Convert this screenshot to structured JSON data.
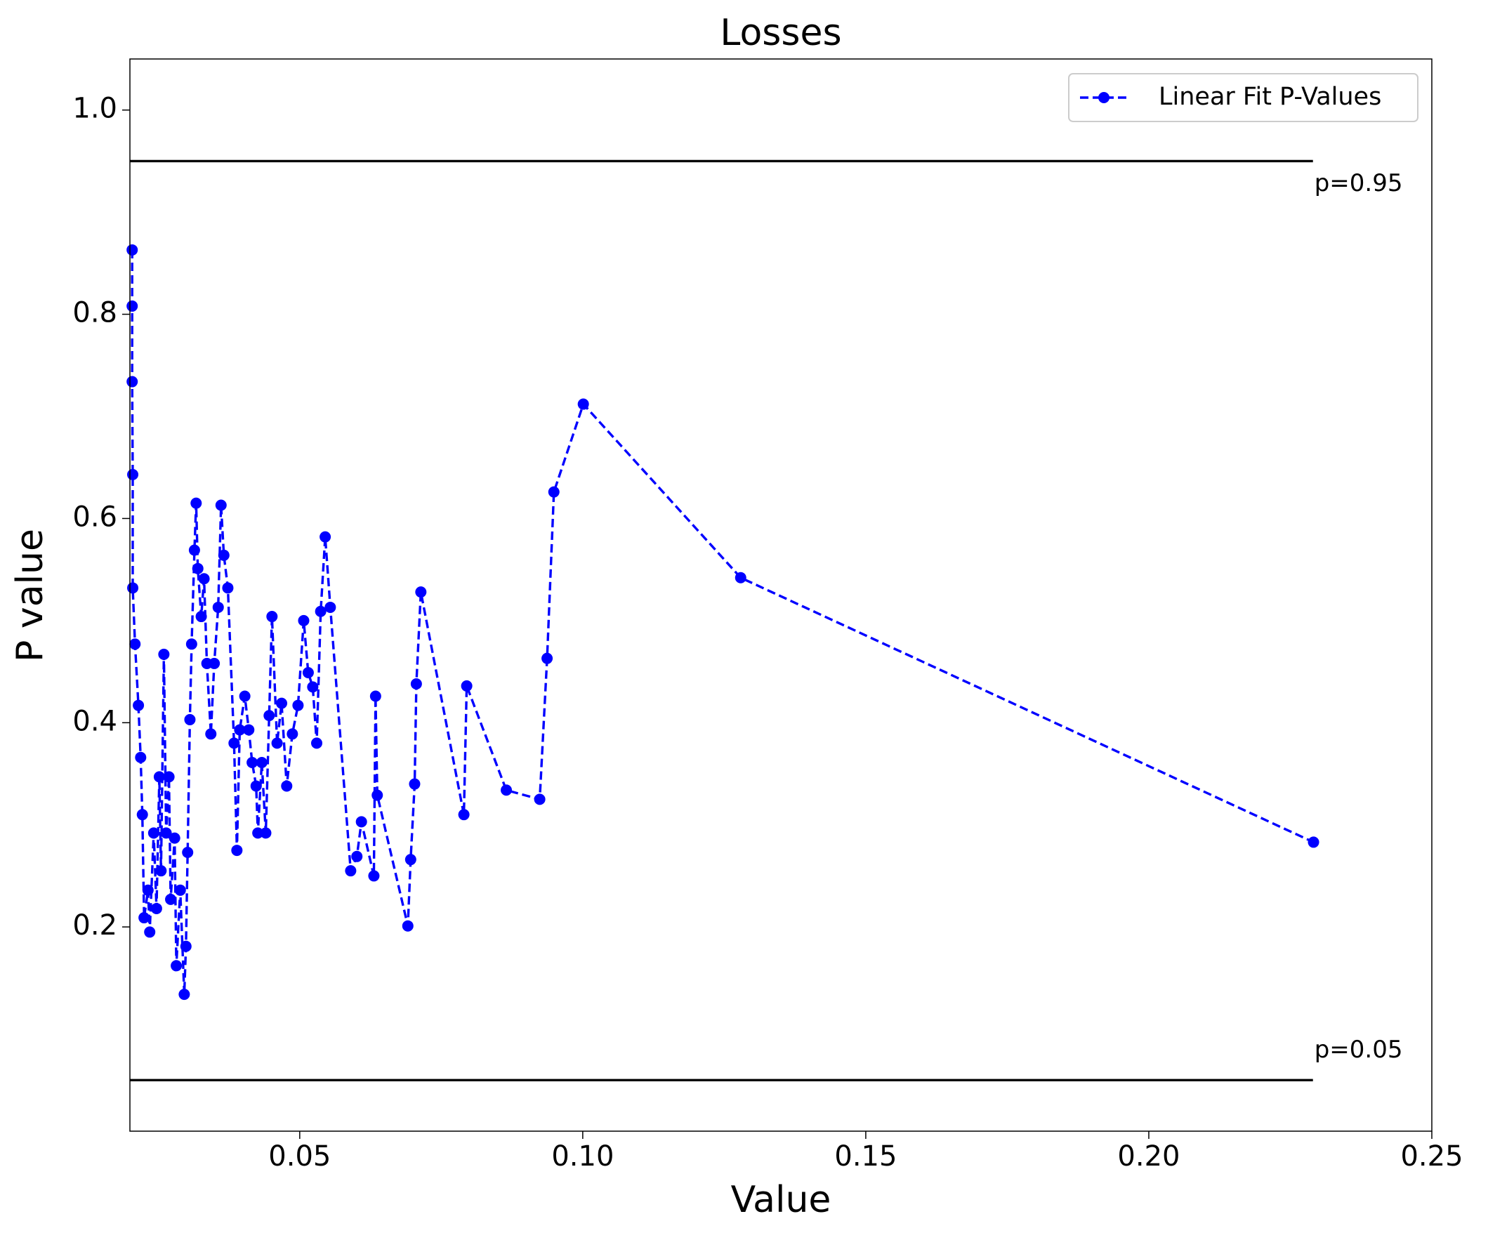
{
  "chart_data": {
    "type": "line",
    "title": "Losses",
    "xlabel": "Value",
    "ylabel": "P value",
    "xlim": [
      0.02,
      0.25
    ],
    "ylim": [
      0.0,
      1.05
    ],
    "xticks": [
      0.05,
      {
        "value": 0.1,
        "label": "0.10"
      },
      0.15,
      {
        "value": 0.2,
        "label": "0.20"
      },
      0.25
    ],
    "yticks": [
      0.2,
      0.4,
      0.6,
      0.8,
      {
        "value": 1.0,
        "label": "1.0"
      }
    ],
    "legend": "upper right",
    "hlines": [
      {
        "y": 0.95,
        "xmin": 0.02,
        "xmax": 0.229,
        "label": "p=0.95",
        "color": "#000000"
      },
      {
        "y": 0.05,
        "xmin": 0.02,
        "xmax": 0.229,
        "label": "p=0.05",
        "color": "#000000"
      }
    ],
    "series": [
      {
        "name": "Linear Fit P-Values",
        "color": "#0000ff",
        "x": [
          0.0204,
          0.0204,
          0.0204,
          0.0205,
          0.0205,
          0.0209,
          0.0215,
          0.0219,
          0.0222,
          0.0225,
          0.0232,
          0.0235,
          0.0242,
          0.0247,
          0.0252,
          0.0255,
          0.026,
          0.0264,
          0.0269,
          0.0272,
          0.0279,
          0.0282,
          0.0289,
          0.0296,
          0.0299,
          0.0302,
          0.0306,
          0.0309,
          0.0314,
          0.0317,
          0.032,
          0.0326,
          0.0331,
          0.0336,
          0.0343,
          0.0349,
          0.0356,
          0.0361,
          0.0366,
          0.0373,
          0.0384,
          0.0389,
          0.0394,
          0.0403,
          0.041,
          0.0416,
          0.0423,
          0.0426,
          0.0433,
          0.044,
          0.0446,
          0.0451,
          0.046,
          0.0468,
          0.0477,
          0.0487,
          0.0497,
          0.0507,
          0.0515,
          0.0523,
          0.053,
          0.0537,
          0.0545,
          0.0554,
          0.059,
          0.0601,
          0.0609,
          0.0631,
          0.0634,
          0.0637,
          0.0691,
          0.0696,
          0.0703,
          0.0706,
          0.0714,
          0.079,
          0.0795,
          0.0865,
          0.0924,
          0.0937,
          0.0949,
          0.1001,
          0.1279,
          0.2291
        ],
        "values": [
          0.863,
          0.808,
          0.734,
          0.643,
          0.532,
          0.477,
          0.417,
          0.366,
          0.31,
          0.209,
          0.236,
          0.195,
          0.292,
          0.218,
          0.347,
          0.255,
          0.467,
          0.292,
          0.347,
          0.227,
          0.287,
          0.162,
          0.236,
          0.134,
          0.181,
          0.273,
          0.403,
          0.477,
          0.569,
          0.615,
          0.551,
          0.504,
          0.541,
          0.458,
          0.389,
          0.458,
          0.513,
          0.613,
          0.564,
          0.532,
          0.38,
          0.275,
          0.393,
          0.426,
          0.393,
          0.361,
          0.338,
          0.292,
          0.361,
          0.292,
          0.407,
          0.504,
          0.38,
          0.419,
          0.338,
          0.389,
          0.417,
          0.5,
          0.449,
          0.435,
          0.38,
          0.509,
          0.582,
          0.513,
          0.255,
          0.269,
          0.303,
          0.25,
          0.426,
          0.329,
          0.201,
          0.266,
          0.34,
          0.438,
          0.528,
          0.31,
          0.436,
          0.334,
          0.325,
          0.463,
          0.626,
          0.712,
          0.542,
          0.283
        ]
      }
    ]
  }
}
